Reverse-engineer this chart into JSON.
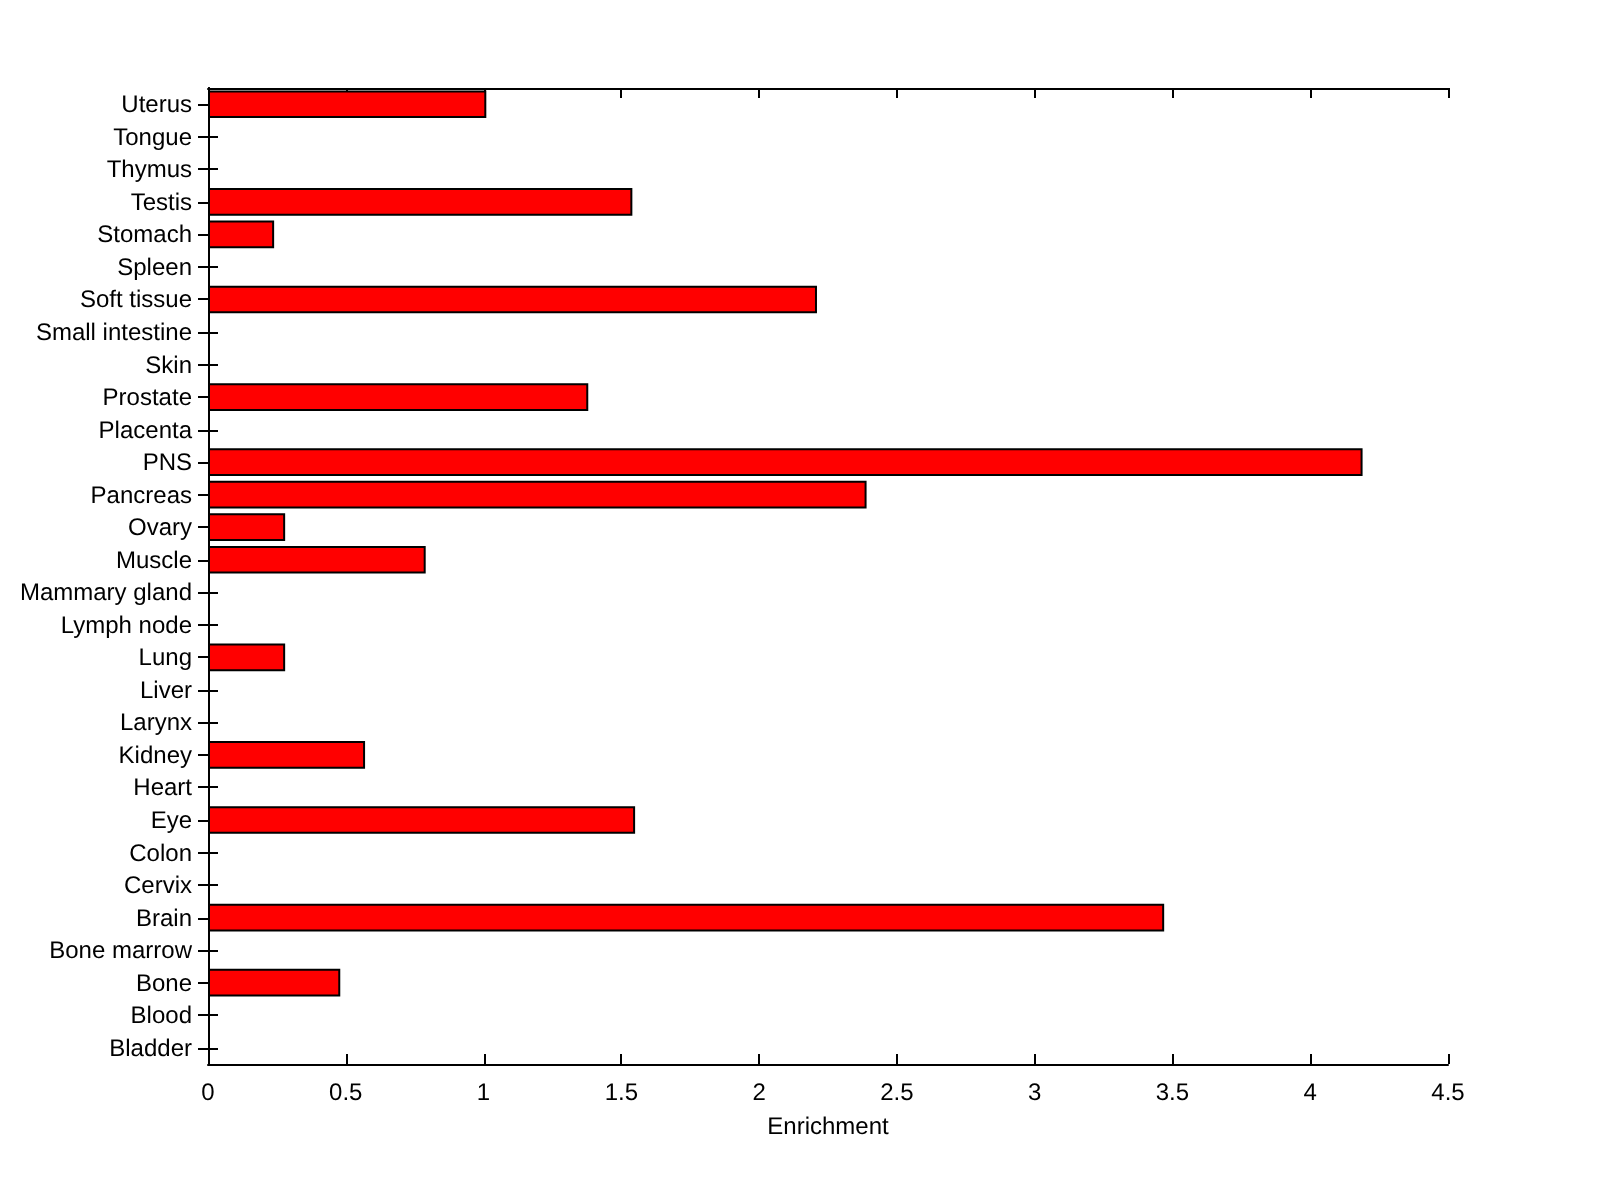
{
  "chart_data": {
    "type": "bar",
    "orientation": "horizontal",
    "xlabel": "Enrichment",
    "categories": [
      "Uterus",
      "Tongue",
      "Thymus",
      "Testis",
      "Stomach",
      "Spleen",
      "Soft tissue",
      "Small intestine",
      "Skin",
      "Prostate",
      "Placenta",
      "PNS",
      "Pancreas",
      "Ovary",
      "Muscle",
      "Mammary gland",
      "Lymph node",
      "Lung",
      "Liver",
      "Larynx",
      "Kidney",
      "Heart",
      "Eye",
      "Colon",
      "Cervix",
      "Brain",
      "Bone marrow",
      "Bone",
      "Blood",
      "Bladder"
    ],
    "values": [
      1.01,
      0,
      0,
      1.54,
      0.24,
      0,
      2.21,
      0,
      0,
      1.38,
      0,
      4.19,
      2.39,
      0.28,
      0.79,
      0,
      0,
      0.28,
      0,
      0,
      0.57,
      0,
      1.55,
      0,
      0,
      3.47,
      0,
      0.48,
      0,
      0
    ],
    "color": "#ff0000",
    "xlim": [
      0,
      4.5
    ],
    "xticks": [
      0,
      0.5,
      1,
      1.5,
      2,
      2.5,
      3,
      3.5,
      4,
      4.5
    ],
    "grid": false
  }
}
